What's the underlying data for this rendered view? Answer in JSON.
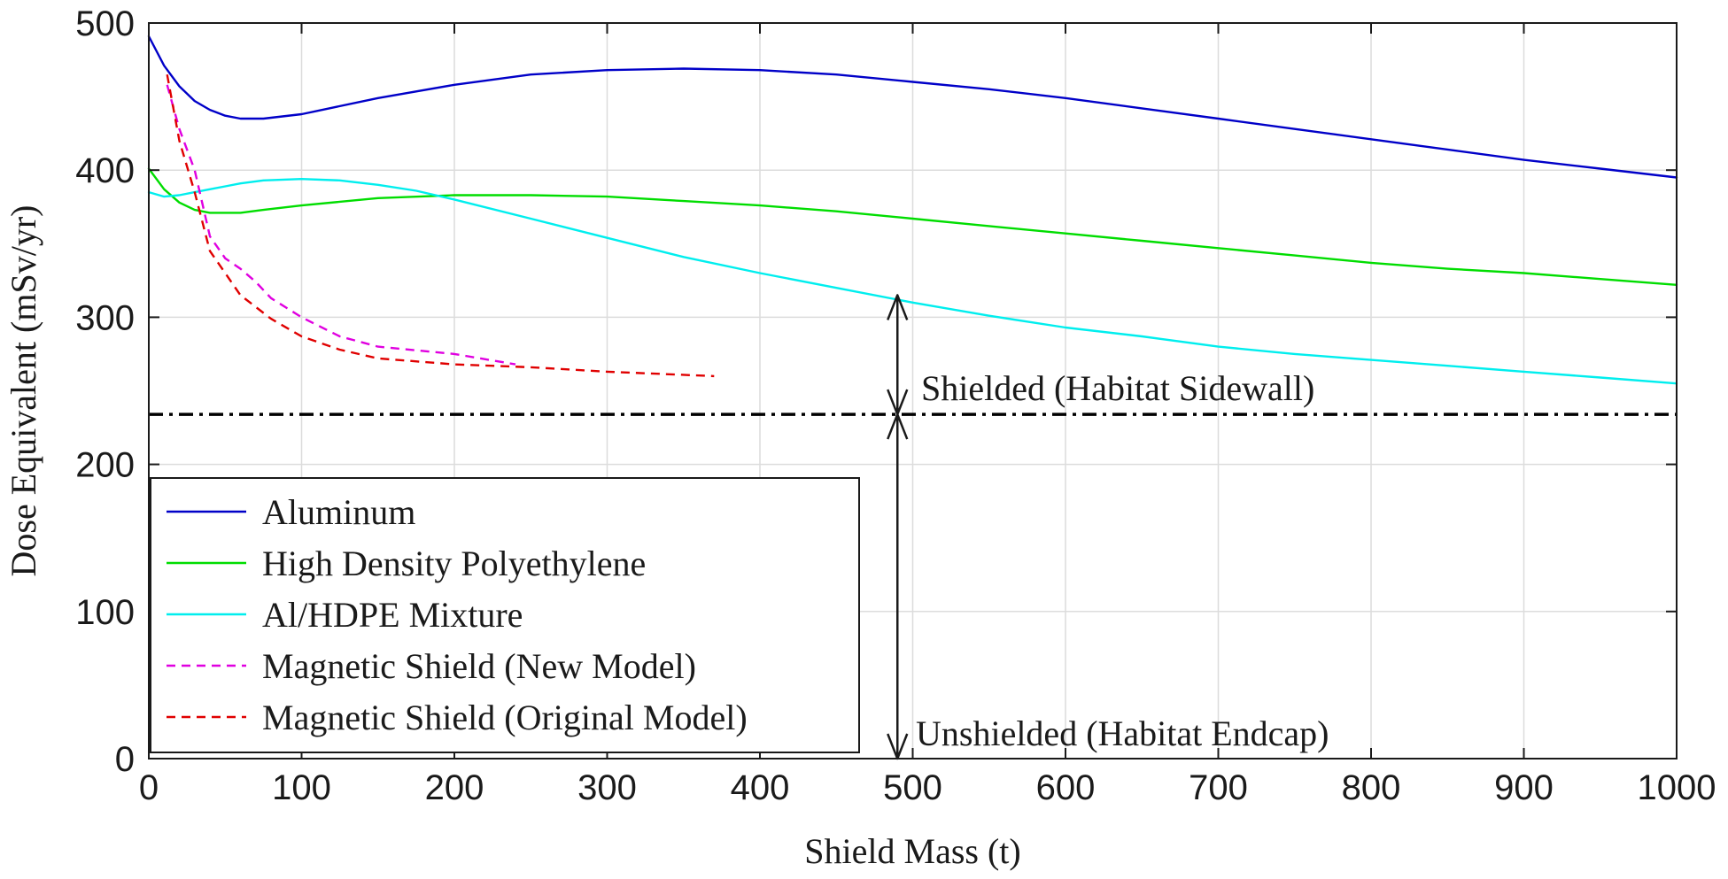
{
  "chart_data": {
    "type": "line",
    "title": "",
    "xlabel": "Shield Mass (t)",
    "ylabel": "Dose Equivalent (mSv/yr)",
    "xlim": [
      0,
      1000
    ],
    "ylim": [
      0,
      500
    ],
    "xticks": [
      0,
      100,
      200,
      300,
      400,
      500,
      600,
      700,
      800,
      900,
      1000
    ],
    "yticks": [
      0,
      100,
      200,
      300,
      400,
      500
    ],
    "grid": true,
    "legend_position": "bottom-left",
    "series": [
      {
        "name": "Aluminum",
        "color": "#0000c8",
        "style": "solid",
        "x": [
          0,
          10,
          20,
          30,
          40,
          50,
          60,
          75,
          100,
          150,
          200,
          250,
          300,
          350,
          400,
          450,
          500,
          550,
          600,
          650,
          700,
          750,
          800,
          850,
          900,
          950,
          1000
        ],
        "y": [
          491,
          471,
          457,
          447,
          441,
          437,
          435,
          435,
          438,
          449,
          458,
          465,
          468,
          469,
          468,
          465,
          460,
          455,
          449,
          442,
          435,
          428,
          421,
          414,
          407,
          401,
          395
        ]
      },
      {
        "name": "High Density Polyethylene",
        "color": "#00dd00",
        "style": "solid",
        "x": [
          0,
          10,
          20,
          30,
          40,
          50,
          60,
          75,
          100,
          150,
          200,
          250,
          300,
          350,
          400,
          450,
          500,
          550,
          600,
          650,
          700,
          750,
          800,
          850,
          900,
          950,
          1000
        ],
        "y": [
          401,
          387,
          378,
          373,
          371,
          371,
          371,
          373,
          376,
          381,
          383,
          383,
          382,
          379,
          376,
          372,
          367,
          362,
          357,
          352,
          347,
          342,
          337,
          333,
          330,
          326,
          322
        ]
      },
      {
        "name": "Al/HDPE Mixture",
        "color": "#00eeee",
        "style": "solid",
        "x": [
          0,
          10,
          20,
          30,
          40,
          50,
          60,
          75,
          100,
          125,
          150,
          175,
          200,
          250,
          300,
          350,
          400,
          450,
          500,
          550,
          600,
          650,
          700,
          750,
          800,
          850,
          900,
          950,
          1000
        ],
        "y": [
          385,
          382,
          383,
          385,
          387,
          389,
          391,
          393,
          394,
          393,
          390,
          386,
          380,
          367,
          354,
          341,
          330,
          320,
          310,
          301,
          293,
          287,
          280,
          275,
          271,
          267,
          263,
          259,
          255
        ]
      },
      {
        "name": "Magnetic Shield (New Model)",
        "color": "#e000e0",
        "style": "dashed",
        "x": [
          12,
          20,
          30,
          40,
          50,
          60,
          70,
          80,
          100,
          125,
          150,
          200,
          240
        ],
        "y": [
          458,
          428,
          400,
          355,
          340,
          333,
          324,
          313,
          300,
          287,
          280,
          275,
          268
        ]
      },
      {
        "name": "Magnetic Shield (Original Model)",
        "color": "#e00000",
        "style": "dashed",
        "x": [
          12,
          20,
          30,
          40,
          50,
          60,
          70,
          80,
          100,
          125,
          150,
          200,
          250,
          300,
          370
        ],
        "y": [
          465,
          420,
          385,
          345,
          330,
          315,
          307,
          299,
          287,
          278,
          272,
          268,
          266,
          263,
          260
        ]
      }
    ],
    "reference_line": {
      "y": 234,
      "style": "dash-dot",
      "color": "#000000"
    },
    "annotations": [
      {
        "text": "Shielded (Habitat Sidewall)",
        "arrow_x": 490,
        "y_from": 234,
        "y_to": 315
      },
      {
        "text": "Unshielded (Habitat Endcap)",
        "arrow_x": 490,
        "y_from": 0,
        "y_to": 234
      }
    ]
  }
}
